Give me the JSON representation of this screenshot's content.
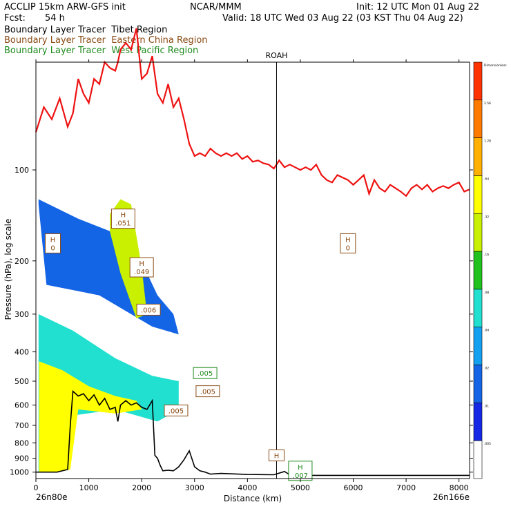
{
  "header": {
    "model": "ACCLIP 15km ARW-GFS init",
    "org": "NCAR/MMM",
    "init": "Init: 12 UTC Mon 01 Aug 22",
    "fcst_label": "Fcst:",
    "fcst_value": "54 h",
    "valid": "Valid: 18 UTC Wed 03 Aug 22 (03 KST Thu 04 Aug 22)"
  },
  "legend": [
    {
      "text": "Boundary Layer Tracer  Tibet Region",
      "color": "#000000"
    },
    {
      "text": "Boundary Layer Tracer  Eastern China Region",
      "color": "#8a4a12"
    },
    {
      "text": "Boundary Layer Tracer  West Pacific Region",
      "color": "#1e8a1e"
    }
  ],
  "chart_data": {
    "type": "heatmap",
    "xlabel": "Distance (km)",
    "ylabel": "Pressure (hPa), log scale",
    "xlim": [
      0,
      8200
    ],
    "ylim": [
      1050,
      44
    ],
    "x_ticks": [
      0,
      1000,
      2000,
      3000,
      4000,
      5000,
      6000,
      7000,
      8000
    ],
    "y_ticks": [
      100,
      200,
      300,
      400,
      500,
      600,
      700,
      800,
      900,
      1000
    ],
    "left_endpoint": "26n80e",
    "right_endpoint": "26n166e",
    "station": {
      "name": "ROAH",
      "x": 4550
    },
    "colorbar": {
      "levels": [
        "Dimensionless",
        "2.56",
        "1.28",
        ".64",
        ".32",
        ".16",
        ".08",
        ".04",
        ".02",
        ".01",
        ".005"
      ],
      "colors": [
        "#ff3300",
        "#ff7a00",
        "#ffb000",
        "#ffff00",
        "#c8f000",
        "#21c21e",
        "#22e0d0",
        "#14a0f0",
        "#1464e6",
        "#1428e6",
        "#ffffff"
      ]
    },
    "red_line": {
      "name": "Tropopause",
      "x": [
        0,
        150,
        300,
        450,
        600,
        700,
        800,
        900,
        1000,
        1100,
        1200,
        1300,
        1400,
        1500,
        1550,
        1600,
        1700,
        1800,
        1900,
        2000,
        2100,
        2200,
        2300,
        2400,
        2500,
        2600,
        2700,
        2800,
        2900,
        3000,
        3100,
        3200,
        3300,
        3400,
        3500,
        3600,
        3700,
        3800,
        3900,
        4000,
        4100,
        4200,
        4300,
        4400,
        4500,
        4600,
        4700,
        4800,
        4900,
        5000,
        5100,
        5200,
        5300,
        5400,
        5500,
        5600,
        5700,
        5800,
        5900,
        6000,
        6100,
        6200,
        6300,
        6400,
        6500,
        6600,
        6700,
        6800,
        6900,
        7000,
        7100,
        7200,
        7300,
        7400,
        7500,
        7600,
        7700,
        7800,
        7900,
        8000,
        8100,
        8200
      ],
      "y": [
        75,
        62,
        68,
        58,
        72,
        65,
        50,
        56,
        60,
        50,
        52,
        44,
        46,
        47,
        44,
        40,
        38,
        40,
        34,
        50,
        48,
        42,
        56,
        60,
        52,
        62,
        58,
        68,
        82,
        90,
        88,
        90,
        85,
        88,
        90,
        88,
        90,
        88,
        92,
        90,
        94,
        93,
        95,
        96,
        99,
        93,
        98,
        96,
        98,
        100,
        98,
        100,
        96,
        104,
        108,
        110,
        104,
        106,
        108,
        112,
        108,
        104,
        120,
        108,
        115,
        118,
        112,
        115,
        118,
        122,
        115,
        112,
        116,
        112,
        118,
        115,
        113,
        115,
        112,
        110,
        118,
        116
      ]
    },
    "terrain": {
      "name": "Surface pressure",
      "x": [
        0,
        200,
        400,
        600,
        650,
        700,
        800,
        900,
        1000,
        1100,
        1200,
        1300,
        1400,
        1500,
        1550,
        1600,
        1700,
        1800,
        1900,
        2000,
        2100,
        2150,
        2200,
        2250,
        2300,
        2350,
        2400,
        2500,
        2600,
        2700,
        2800,
        2900,
        3000,
        3100,
        3200,
        3300,
        3500,
        4000,
        4500,
        4700,
        4800,
        5000,
        6000,
        7000,
        8200
      ],
      "y": [
        1000,
        1000,
        1000,
        980,
        700,
        540,
        560,
        550,
        580,
        555,
        600,
        570,
        620,
        610,
        680,
        600,
        580,
        600,
        590,
        610,
        620,
        600,
        580,
        880,
        900,
        950,
        990,
        985,
        990,
        960,
        910,
        850,
        960,
        990,
        1000,
        1015,
        1010,
        1018,
        1020,
        995,
        1020,
        1025,
        1025,
        1025,
        1025
      ]
    },
    "fill_regions": [
      {
        "name": "tibet-upper-tongue",
        "level": ".02",
        "x": [
          50,
          800,
          1800,
          2300,
          2600,
          2700,
          2200,
          1200,
          200,
          50
        ],
        "y": [
          125,
          145,
          170,
          260,
          300,
          350,
          330,
          260,
          240,
          130
        ]
      },
      {
        "name": "tibet-upper-core",
        "level": ".32",
        "x": [
          1400,
          1600,
          1800,
          2000,
          2100,
          1900,
          1600,
          1400
        ],
        "y": [
          140,
          125,
          130,
          210,
          300,
          310,
          220,
          160
        ]
      },
      {
        "name": "tibet-lower-tongue",
        "level": ".08",
        "x": [
          50,
          700,
          1500,
          2200,
          2700,
          2700,
          2300,
          1500,
          700,
          200,
          50
        ],
        "y": [
          300,
          340,
          420,
          480,
          500,
          620,
          680,
          620,
          650,
          900,
          1000
        ]
      },
      {
        "name": "tibet-lower-core",
        "level": ".64",
        "x": [
          60,
          500,
          1000,
          1500,
          1900,
          2000,
          1500,
          800,
          650,
          400,
          60
        ],
        "y": [
          430,
          460,
          520,
          560,
          580,
          620,
          640,
          620,
          980,
          1000,
          1000
        ]
      }
    ],
    "annotations": [
      {
        "label": "H",
        "value": ".051",
        "x": 1650,
        "y": 145,
        "color": "#8a4a12"
      },
      {
        "label": "H",
        "value": "0",
        "x": 320,
        "y": 175,
        "color": "#8a4a12"
      },
      {
        "label": "H",
        "value": ".049",
        "x": 2000,
        "y": 210,
        "color": "#8a4a12"
      },
      {
        "label": "",
        "value": ".006",
        "x": 2130,
        "y": 290,
        "color": "#8a4a12"
      },
      {
        "label": "H",
        "value": "0",
        "x": 5900,
        "y": 175,
        "color": "#8a4a12"
      },
      {
        "label": "",
        "value": ".005",
        "x": 3200,
        "y": 470,
        "color": "#1e8a1e"
      },
      {
        "label": "",
        "value": ".005",
        "x": 3250,
        "y": 540,
        "color": "#8a4a12"
      },
      {
        "label": "",
        "value": ".005",
        "x": 2650,
        "y": 625,
        "color": "#8a4a12"
      },
      {
        "label": "H",
        "value": "",
        "x": 4550,
        "y": 880,
        "color": "#8a4a12"
      },
      {
        "label": "H",
        "value": ".007",
        "x": 5000,
        "y": 990,
        "color": "#1e8a1e"
      }
    ]
  }
}
